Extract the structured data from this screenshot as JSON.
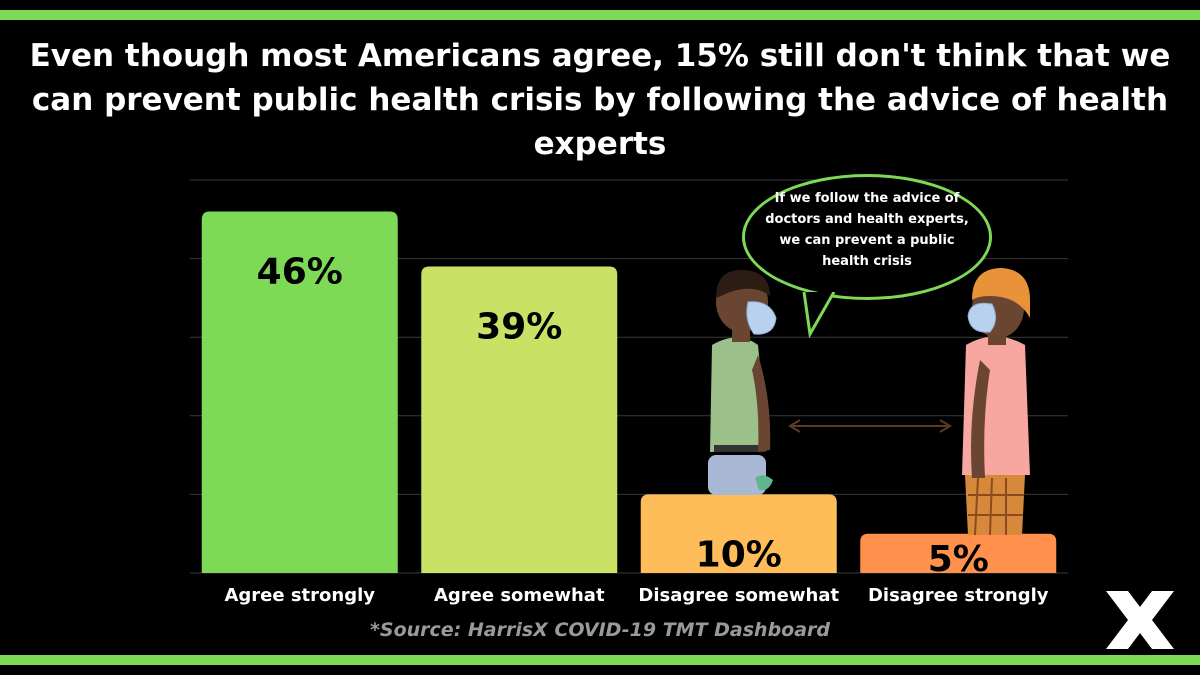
{
  "title": "Even though most Americans agree, 15% still don't think that we can prevent public health crisis by following the advice of health experts",
  "speech_bubble": "If we follow the advice of doctors and health experts, we can prevent a public health crisis",
  "source": "*Source: HarrisX COVID-19 TMT Dashboard",
  "chart_data": {
    "type": "bar",
    "categories": [
      "Agree strongly",
      "Agree somewhat",
      "Disagree somewhat",
      "Disagree strongly"
    ],
    "values": [
      46,
      39,
      10,
      5
    ],
    "data_labels": [
      "46%",
      "39%",
      "10%",
      "5%"
    ],
    "colors": [
      "#7ed957",
      "#c9e265",
      "#ffbd59",
      "#ff914d"
    ],
    "ylim": [
      0,
      50
    ],
    "grid": true
  },
  "colors": {
    "accent": "#7ed957",
    "background": "#000000"
  },
  "icons": [
    "man-with-mask-illustration",
    "person-with-mask-illustration",
    "double-arrow-icon",
    "harrisx-logo"
  ]
}
